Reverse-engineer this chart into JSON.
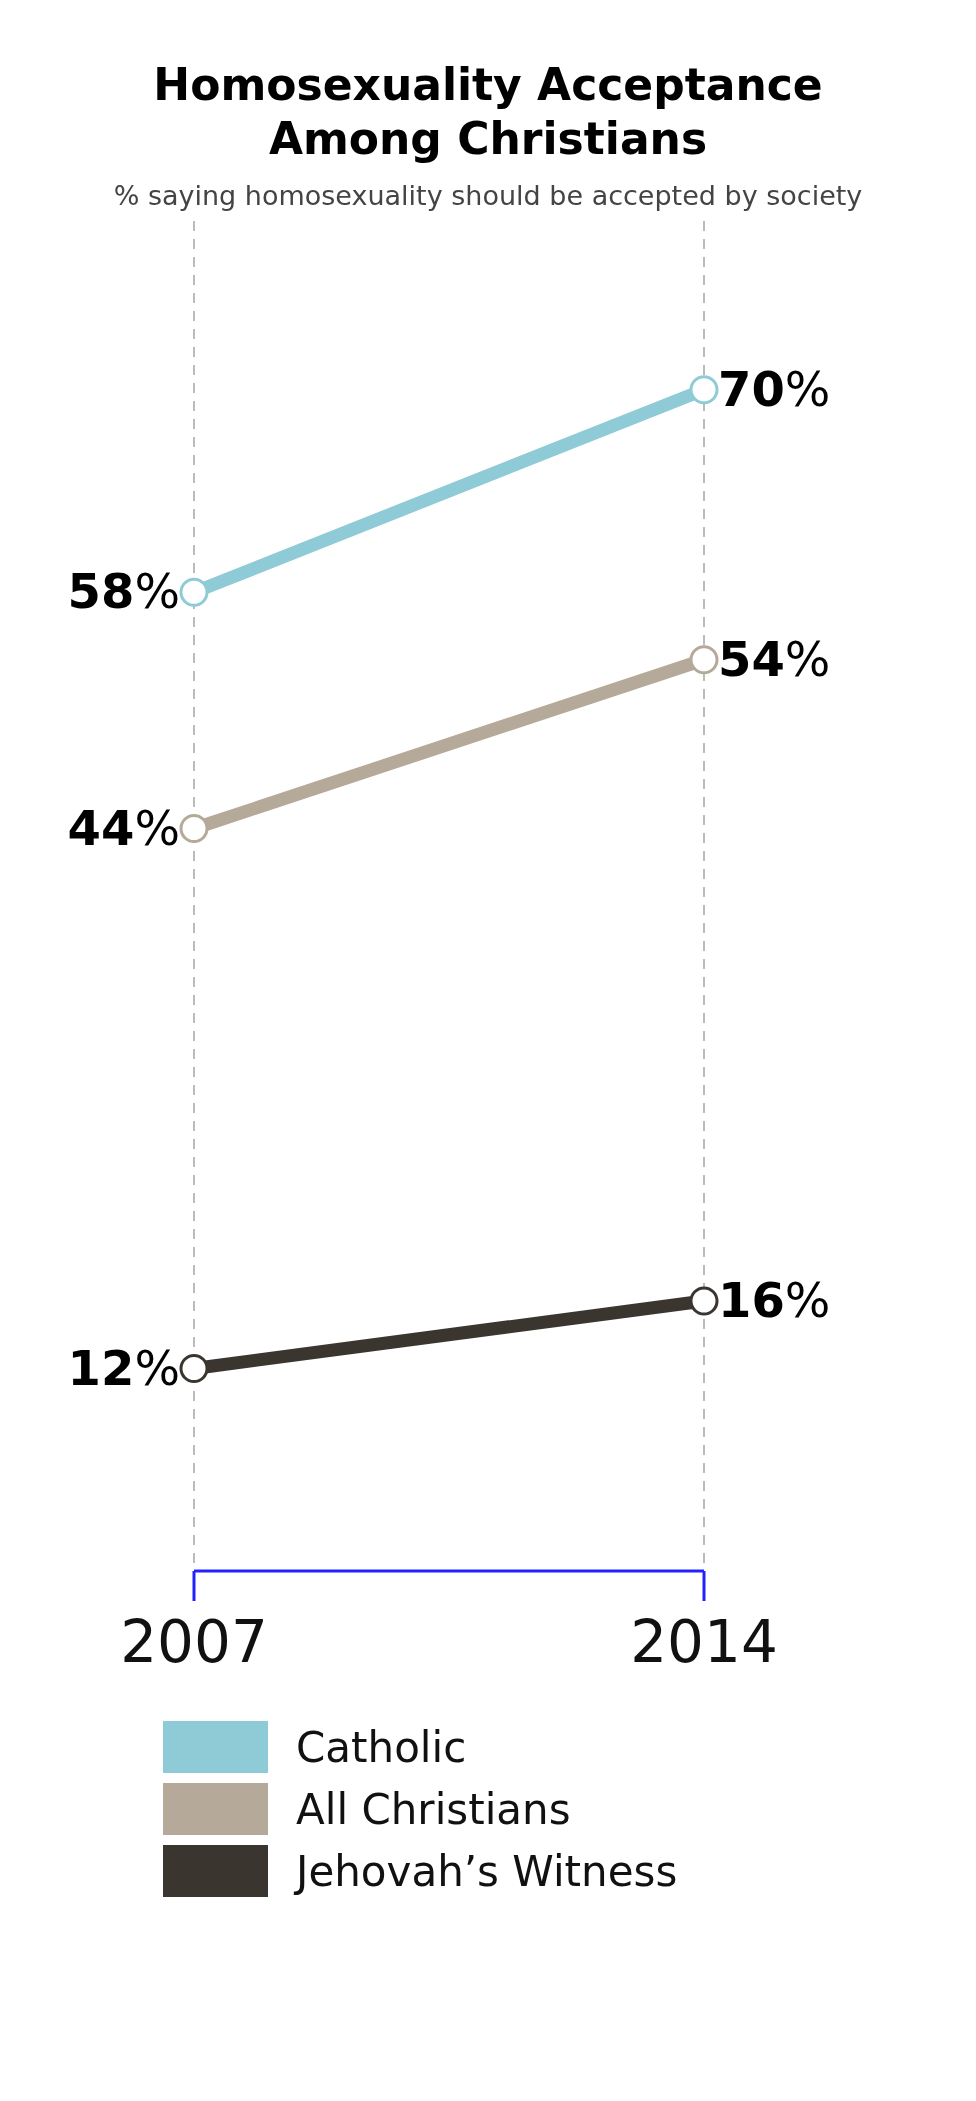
{
  "chart_data": {
    "type": "line",
    "title": "Homosexuality Acceptance Among Christians",
    "subtitle": "% saying homosexuality should be accepted by society",
    "categories": [
      "2007",
      "2014"
    ],
    "series": [
      {
        "name": "Catholic",
        "color": "#8ecbd6",
        "values": [
          58,
          70
        ],
        "value_labels": [
          "58%",
          "70%"
        ]
      },
      {
        "name": "All Christians",
        "color": "#b5aa99",
        "values": [
          44,
          54
        ],
        "value_labels": [
          "44%",
          "54%"
        ]
      },
      {
        "name": "Jehovah’s Witness",
        "color": "#3b3530",
        "values": [
          12,
          16
        ],
        "value_labels": [
          "12%",
          "16%"
        ]
      }
    ],
    "marker": "circle",
    "grid": "x",
    "legend": "bottom",
    "tick_labels": "x"
  }
}
